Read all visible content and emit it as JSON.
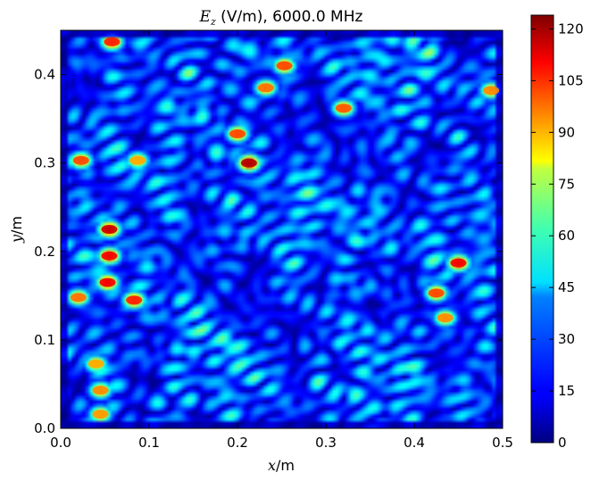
{
  "chart_data": {
    "type": "heatmap",
    "title": {
      "symbol": "E",
      "subscript": "z",
      "rest": " (V/m), 6000.0 MHz"
    },
    "xlabel": {
      "symbol": "x",
      "rest": "/m"
    },
    "ylabel": {
      "symbol": "y",
      "rest": "/m"
    },
    "xlim": [
      0.0,
      0.5
    ],
    "ylim": [
      0.0,
      0.45
    ],
    "xticks": [
      "0.0",
      "0.1",
      "0.2",
      "0.3",
      "0.4",
      "0.5"
    ],
    "yticks": [
      "0.0",
      "0.1",
      "0.2",
      "0.3",
      "0.4"
    ],
    "colorbar": {
      "min": 0,
      "max": 124,
      "ticks": [
        "0",
        "15",
        "30",
        "45",
        "60",
        "75",
        "90",
        "105",
        "120"
      ],
      "colormap": "jet"
    },
    "hotspots": [
      {
        "x": 0.058,
        "y": 0.437,
        "value": 105
      },
      {
        "x": 0.253,
        "y": 0.41,
        "value": 100
      },
      {
        "x": 0.487,
        "y": 0.382,
        "value": 92
      },
      {
        "x": 0.232,
        "y": 0.385,
        "value": 95
      },
      {
        "x": 0.32,
        "y": 0.362,
        "value": 98
      },
      {
        "x": 0.2,
        "y": 0.333,
        "value": 100
      },
      {
        "x": 0.213,
        "y": 0.3,
        "value": 118
      },
      {
        "x": 0.023,
        "y": 0.303,
        "value": 100
      },
      {
        "x": 0.087,
        "y": 0.303,
        "value": 88
      },
      {
        "x": 0.055,
        "y": 0.225,
        "value": 115
      },
      {
        "x": 0.055,
        "y": 0.195,
        "value": 110
      },
      {
        "x": 0.45,
        "y": 0.187,
        "value": 110
      },
      {
        "x": 0.053,
        "y": 0.165,
        "value": 110
      },
      {
        "x": 0.083,
        "y": 0.145,
        "value": 105
      },
      {
        "x": 0.02,
        "y": 0.148,
        "value": 95
      },
      {
        "x": 0.425,
        "y": 0.153,
        "value": 100
      },
      {
        "x": 0.435,
        "y": 0.125,
        "value": 92
      },
      {
        "x": 0.045,
        "y": 0.043,
        "value": 92
      },
      {
        "x": 0.04,
        "y": 0.073,
        "value": 88
      },
      {
        "x": 0.045,
        "y": 0.016,
        "value": 90
      }
    ],
    "grid": false,
    "legend": "none"
  }
}
